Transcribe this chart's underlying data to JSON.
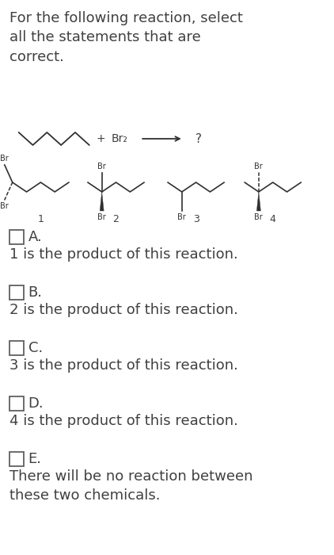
{
  "title": "For the following reaction, select\nall the statements that are\ncorrect.",
  "title_fontsize": 13.0,
  "title_color": "#404040",
  "bg_color": "#ffffff",
  "options": [
    {
      "letter": "A.",
      "text": "1 is the product of this reaction."
    },
    {
      "letter": "B.",
      "text": "2 is the product of this reaction."
    },
    {
      "letter": "C.",
      "text": "3 is the product of this reaction."
    },
    {
      "letter": "D.",
      "text": "4 is the product of this reaction."
    },
    {
      "letter": "E.",
      "text": "There will be no reaction between\nthese two chemicals."
    }
  ],
  "text_color": "#404040",
  "text_fontsize": 13.0,
  "mol_color": "#303030"
}
